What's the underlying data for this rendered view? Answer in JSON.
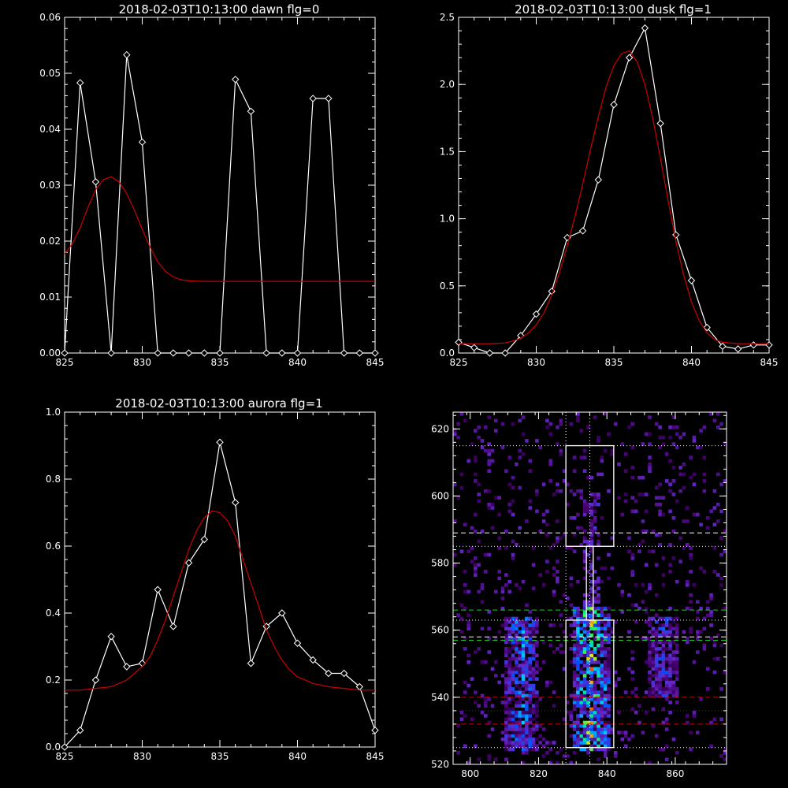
{
  "figure": {
    "background": "#000000",
    "axis_color": "#ffffff",
    "fit_color": "#cc0000",
    "data_color": "#ffffff"
  },
  "chart_data": [
    {
      "id": "dawn",
      "type": "line",
      "title": "2018-02-03T10:13:00 dawn flg=0",
      "xlim": [
        825,
        845
      ],
      "ylim": [
        0,
        0.06
      ],
      "xticks": [
        825,
        830,
        835,
        840,
        845
      ],
      "xtick_labels": [
        "825",
        "830",
        "835",
        "840",
        "845"
      ],
      "yticks": [
        0,
        0.01,
        0.02,
        0.03,
        0.04,
        0.05,
        0.06
      ],
      "ytick_labels": [
        "0.00",
        "0.01",
        "0.02",
        "0.03",
        "0.04",
        "0.05",
        "0.06"
      ],
      "series": [
        {
          "role": "data",
          "marker": "diamond",
          "color": "#ffffff",
          "x": [
            825,
            826,
            827,
            828,
            829,
            830,
            831,
            832,
            833,
            834,
            835,
            836,
            837,
            838,
            839,
            840,
            841,
            842,
            843,
            844,
            845
          ],
          "y": [
            0,
            0.0483,
            0.0306,
            0,
            0.0533,
            0.0377,
            0,
            0,
            0,
            0,
            0,
            0.0489,
            0.0432,
            0,
            0,
            0,
            0.0455,
            0.0455,
            0,
            0,
            0
          ]
        },
        {
          "role": "fit",
          "color": "#cc0000",
          "x": [
            825,
            825.5,
            826,
            826.5,
            827,
            827.5,
            828,
            828.5,
            829,
            829.5,
            830,
            830.5,
            831,
            831.5,
            832,
            832.5,
            833,
            834,
            835,
            836,
            837,
            838,
            839,
            840,
            841,
            842,
            843,
            844,
            845
          ],
          "y": [
            0.0177,
            0.0195,
            0.0224,
            0.026,
            0.0292,
            0.031,
            0.0315,
            0.0306,
            0.0285,
            0.0255,
            0.0221,
            0.0189,
            0.0163,
            0.0146,
            0.0136,
            0.0131,
            0.0129,
            0.0128,
            0.0128,
            0.0128,
            0.0128,
            0.0128,
            0.0128,
            0.0128,
            0.0128,
            0.0128,
            0.0128,
            0.0128,
            0.0128
          ]
        }
      ]
    },
    {
      "id": "dusk",
      "type": "line",
      "title": "2018-02-03T10:13:00 dusk flg=1",
      "xlim": [
        825,
        845
      ],
      "ylim": [
        0,
        2.5
      ],
      "xticks": [
        825,
        830,
        835,
        840,
        845
      ],
      "xtick_labels": [
        "825",
        "830",
        "835",
        "840",
        "845"
      ],
      "yticks": [
        0,
        0.5,
        1.0,
        1.5,
        2.0,
        2.5
      ],
      "ytick_labels": [
        "0.0",
        "0.5",
        "1.0",
        "1.5",
        "2.0",
        "2.5"
      ],
      "series": [
        {
          "role": "data",
          "marker": "diamond",
          "color": "#ffffff",
          "x": [
            825,
            826,
            827,
            828,
            829,
            830,
            831,
            832,
            833,
            834,
            835,
            836,
            837,
            838,
            839,
            840,
            841,
            842,
            843,
            844,
            845
          ],
          "y": [
            0.08,
            0.04,
            0,
            0,
            0.13,
            0.29,
            0.46,
            0.86,
            0.91,
            1.29,
            1.85,
            2.2,
            2.42,
            1.71,
            0.88,
            0.54,
            0.19,
            0.05,
            0.03,
            0.06,
            0.06
          ]
        },
        {
          "role": "fit",
          "color": "#cc0000",
          "x": [
            825,
            826,
            827,
            828,
            828.5,
            829,
            829.5,
            830,
            830.5,
            831,
            831.5,
            832,
            832.5,
            833,
            833.5,
            834,
            834.5,
            835,
            835.5,
            836,
            836.5,
            837,
            837.5,
            838,
            838.5,
            839,
            839.5,
            840,
            840.5,
            841,
            841.5,
            842,
            843,
            844,
            845
          ],
          "y": [
            0.07,
            0.07,
            0.07,
            0.075,
            0.09,
            0.11,
            0.15,
            0.21,
            0.3,
            0.43,
            0.6,
            0.8,
            1.02,
            1.26,
            1.52,
            1.76,
            1.98,
            2.14,
            2.23,
            2.25,
            2.17,
            2.0,
            1.75,
            1.45,
            1.13,
            0.83,
            0.58,
            0.38,
            0.24,
            0.15,
            0.1,
            0.08,
            0.07,
            0.07,
            0.07
          ]
        }
      ]
    },
    {
      "id": "aurora",
      "type": "line",
      "title": "2018-02-03T10:13:00 aurora flg=1",
      "xlim": [
        825,
        845
      ],
      "ylim": [
        0,
        1.0
      ],
      "xticks": [
        825,
        830,
        835,
        840,
        845
      ],
      "xtick_labels": [
        "825",
        "830",
        "835",
        "840",
        "845"
      ],
      "yticks": [
        0,
        0.2,
        0.4,
        0.6,
        0.8,
        1.0
      ],
      "ytick_labels": [
        "0.0",
        "0.2",
        "0.4",
        "0.6",
        "0.8",
        "1.0"
      ],
      "series": [
        {
          "role": "data",
          "marker": "diamond",
          "color": "#ffffff",
          "x": [
            825,
            826,
            827,
            828,
            829,
            830,
            831,
            832,
            833,
            834,
            835,
            836,
            837,
            838,
            839,
            840,
            841,
            842,
            843,
            844,
            845
          ],
          "y": [
            0,
            0.05,
            0.2,
            0.33,
            0.24,
            0.25,
            0.47,
            0.36,
            0.55,
            0.62,
            0.91,
            0.73,
            0.25,
            0.36,
            0.4,
            0.31,
            0.26,
            0.22,
            0.22,
            0.18,
            0.05
          ]
        },
        {
          "role": "fit",
          "color": "#cc0000",
          "x": [
            825,
            826,
            827,
            828,
            829,
            830,
            830.5,
            831,
            831.5,
            832,
            832.5,
            833,
            833.5,
            834,
            834.5,
            835,
            835.5,
            836,
            836.5,
            837,
            837.5,
            838,
            838.5,
            839,
            839.5,
            840,
            841,
            842,
            843,
            844,
            845
          ],
          "y": [
            0.17,
            0.17,
            0.175,
            0.18,
            0.2,
            0.24,
            0.27,
            0.32,
            0.38,
            0.45,
            0.52,
            0.59,
            0.645,
            0.685,
            0.705,
            0.7,
            0.675,
            0.63,
            0.56,
            0.49,
            0.42,
            0.35,
            0.3,
            0.26,
            0.23,
            0.21,
            0.19,
            0.18,
            0.175,
            0.17,
            0.17
          ]
        }
      ]
    },
    {
      "id": "image",
      "type": "heatmap",
      "title": "",
      "xlim": [
        795,
        875
      ],
      "ylim": [
        520,
        625
      ],
      "xticks": [
        800,
        820,
        840,
        860
      ],
      "xtick_labels": [
        "800",
        "820",
        "840",
        "860"
      ],
      "yticks": [
        520,
        540,
        560,
        580,
        600,
        620
      ],
      "ytick_labels": [
        "520",
        "540",
        "560",
        "580",
        "600",
        "620"
      ],
      "bright_columns": [
        {
          "x_range": [
            810,
            819
          ],
          "y_range": [
            524,
            563
          ],
          "peak": 0.7
        },
        {
          "x_range": [
            830,
            840
          ],
          "y_range": [
            524,
            566
          ],
          "peak": 1.0
        },
        {
          "x_range": [
            852,
            860
          ],
          "y_range": [
            540,
            563
          ],
          "peak": 0.55
        }
      ],
      "boxes": [
        {
          "x": [
            828,
            842
          ],
          "y": [
            585,
            615
          ],
          "color": "#ffffff"
        },
        {
          "x": [
            834,
            836
          ],
          "y": [
            563,
            585
          ],
          "color": "#ffffff"
        },
        {
          "x": [
            828,
            842
          ],
          "y": [
            525,
            563
          ],
          "color": "#ffffff"
        }
      ],
      "hlines": [
        {
          "y": 615,
          "style": "dotted",
          "color": "#ffffff"
        },
        {
          "y": 589,
          "style": "dashed",
          "color": "#ffffff"
        },
        {
          "y": 585,
          "style": "dotted",
          "color": "#ffffff"
        },
        {
          "y": 566,
          "style": "dashed",
          "color": "#22cc22"
        },
        {
          "y": 563,
          "style": "dotted",
          "color": "#ffffff"
        },
        {
          "y": 558,
          "style": "dashed",
          "color": "#ffffff"
        },
        {
          "y": 557,
          "style": "dashed",
          "color": "#22cc22"
        },
        {
          "y": 540,
          "style": "dashed",
          "color": "#cc0000"
        },
        {
          "y": 536,
          "style": "dotted",
          "color": "#cc0000"
        },
        {
          "y": 532,
          "style": "dashed",
          "color": "#cc0000"
        },
        {
          "y": 525,
          "style": "dotted",
          "color": "#ffffff"
        }
      ],
      "vlines": [
        {
          "x": 828,
          "style": "dotted",
          "color": "#ffffff"
        },
        {
          "x": 835,
          "style": "dotted",
          "color": "#ffffff"
        }
      ]
    }
  ]
}
